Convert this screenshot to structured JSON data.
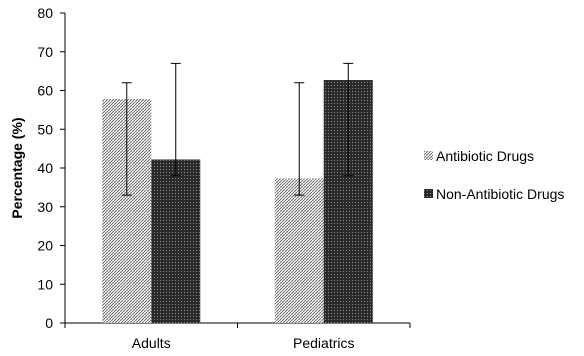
{
  "chart_data": {
    "type": "bar",
    "title": "",
    "xlabel": "",
    "ylabel": "Percentage (%)",
    "ylim": [
      0,
      80
    ],
    "yticks": [
      0,
      10,
      20,
      30,
      40,
      50,
      60,
      70,
      80
    ],
    "categories": [
      "Adults",
      "Pediatrics"
    ],
    "series": [
      {
        "name": "Antibiotic Drugs",
        "values": [
          57.8,
          37.3
        ],
        "error_low": [
          33,
          33
        ],
        "error_high": [
          62,
          62
        ],
        "pattern": "light-diagonal",
        "color": "#7a7a7a"
      },
      {
        "name": "Non-Antibiotic Drugs",
        "values": [
          42.2,
          62.7
        ],
        "error_low": [
          38,
          38
        ],
        "error_high": [
          67,
          67
        ],
        "pattern": "dark-dots",
        "color": "#2f2f2f"
      }
    ],
    "legend": "right",
    "grid": false
  }
}
